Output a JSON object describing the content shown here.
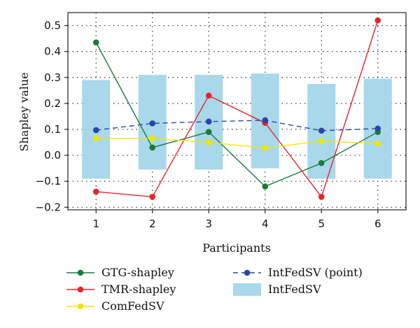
{
  "chart_data": {
    "type": "line",
    "xlabel": "Participants",
    "ylabel": "Shapley value",
    "x": [
      1,
      2,
      3,
      4,
      5,
      6
    ],
    "xlim": [
      0.5,
      6.5
    ],
    "ylim": [
      -0.21,
      0.55
    ],
    "yticks": [
      -0.2,
      -0.1,
      0.0,
      0.1,
      0.2,
      0.3,
      0.4,
      0.5
    ],
    "ytick_labels": [
      "−0.2",
      "−0.1",
      "0.0",
      "0.1",
      "0.2",
      "0.3",
      "0.4",
      "0.5"
    ],
    "xtick_labels": [
      "1",
      "2",
      "3",
      "4",
      "5",
      "6"
    ],
    "grid": true,
    "legend_position": "bottom",
    "intervals": {
      "name": "IntFedSV",
      "color": "#a8d8ea",
      "low": [
        -0.09,
        -0.055,
        -0.055,
        -0.05,
        -0.09,
        -0.09
      ],
      "high": [
        0.29,
        0.31,
        0.31,
        0.315,
        0.275,
        0.295
      ]
    },
    "series": [
      {
        "name": "GTG-shapley",
        "color": "#1a7a3a",
        "dashed": false,
        "values": [
          0.435,
          0.03,
          0.09,
          -0.12,
          -0.03,
          0.09
        ]
      },
      {
        "name": "TMR-shapley",
        "color": "#e8242a",
        "dashed": false,
        "values": [
          -0.14,
          -0.16,
          0.23,
          0.125,
          -0.16,
          0.52
        ]
      },
      {
        "name": "ComFedSV",
        "color": "#f2e600",
        "dashed": false,
        "values": [
          0.065,
          0.065,
          0.05,
          0.028,
          0.055,
          0.045
        ]
      },
      {
        "name": "IntFedSV (point)",
        "color": "#2b46a8",
        "dashed": true,
        "values": [
          0.097,
          0.123,
          0.13,
          0.135,
          0.095,
          0.103
        ]
      }
    ]
  }
}
